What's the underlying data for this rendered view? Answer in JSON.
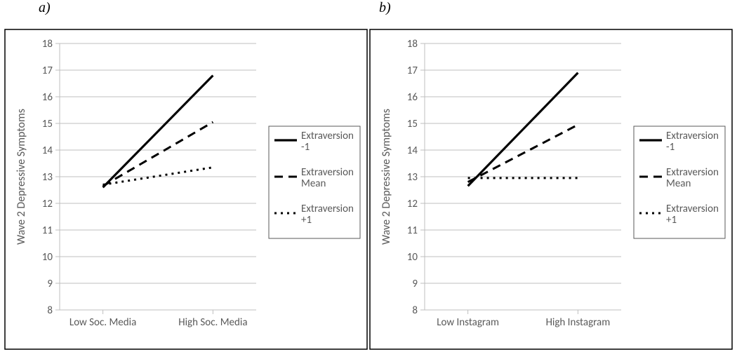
{
  "panelA": {
    "label": "a)",
    "label_fontsize": 20,
    "label_fontstyle": "italic",
    "chart": {
      "type": "line",
      "ylabel": "Wave 2 Depressive Symptoms",
      "label_fontsize": 16,
      "x_categories": [
        "Low Soc. Media",
        "High Soc. Media"
      ],
      "ylim": [
        8,
        18
      ],
      "ytick_step": 1,
      "y_ticks": [
        8,
        9,
        10,
        11,
        12,
        13,
        14,
        15,
        16,
        17,
        18
      ],
      "background_color": "#ffffff",
      "grid_color": "#bfbfbf",
      "border_color": "#000000",
      "tick_color": "#bfbfbf",
      "tick_label_color": "#595959",
      "series": [
        {
          "name": "Extraversion -1",
          "dash": "solid",
          "color": "#000000",
          "width": 3.2,
          "values": [
            12.6,
            16.8
          ]
        },
        {
          "name": "Extraversion Mean",
          "dash": "dashed",
          "color": "#000000",
          "width": 3.0,
          "values": [
            12.65,
            15.05
          ]
        },
        {
          "name": "Extraversion +1",
          "dash": "dotted",
          "color": "#000000",
          "width": 3.0,
          "values": [
            12.7,
            13.35
          ]
        }
      ],
      "legend_border_color": "#595959"
    }
  },
  "panelB": {
    "label": "b)",
    "label_fontsize": 20,
    "label_fontstyle": "italic",
    "chart": {
      "type": "line",
      "ylabel": "Wave 2 Depressive Symptoms",
      "label_fontsize": 16,
      "x_categories": [
        "Low Instagram",
        "High Instagram"
      ],
      "ylim": [
        8,
        18
      ],
      "ytick_step": 1,
      "y_ticks": [
        8,
        9,
        10,
        11,
        12,
        13,
        14,
        15,
        16,
        17,
        18
      ],
      "background_color": "#ffffff",
      "grid_color": "#bfbfbf",
      "border_color": "#000000",
      "tick_color": "#bfbfbf",
      "tick_label_color": "#595959",
      "series": [
        {
          "name": "Extraversion -1",
          "dash": "solid",
          "color": "#000000",
          "width": 3.2,
          "values": [
            12.65,
            16.9
          ]
        },
        {
          "name": "Extraversion Mean",
          "dash": "dashed",
          "color": "#000000",
          "width": 3.0,
          "values": [
            12.8,
            14.95
          ]
        },
        {
          "name": "Extraversion +1",
          "dash": "dotted",
          "color": "#000000",
          "width": 3.0,
          "values": [
            12.95,
            12.95
          ]
        }
      ],
      "legend_border_color": "#595959"
    }
  }
}
